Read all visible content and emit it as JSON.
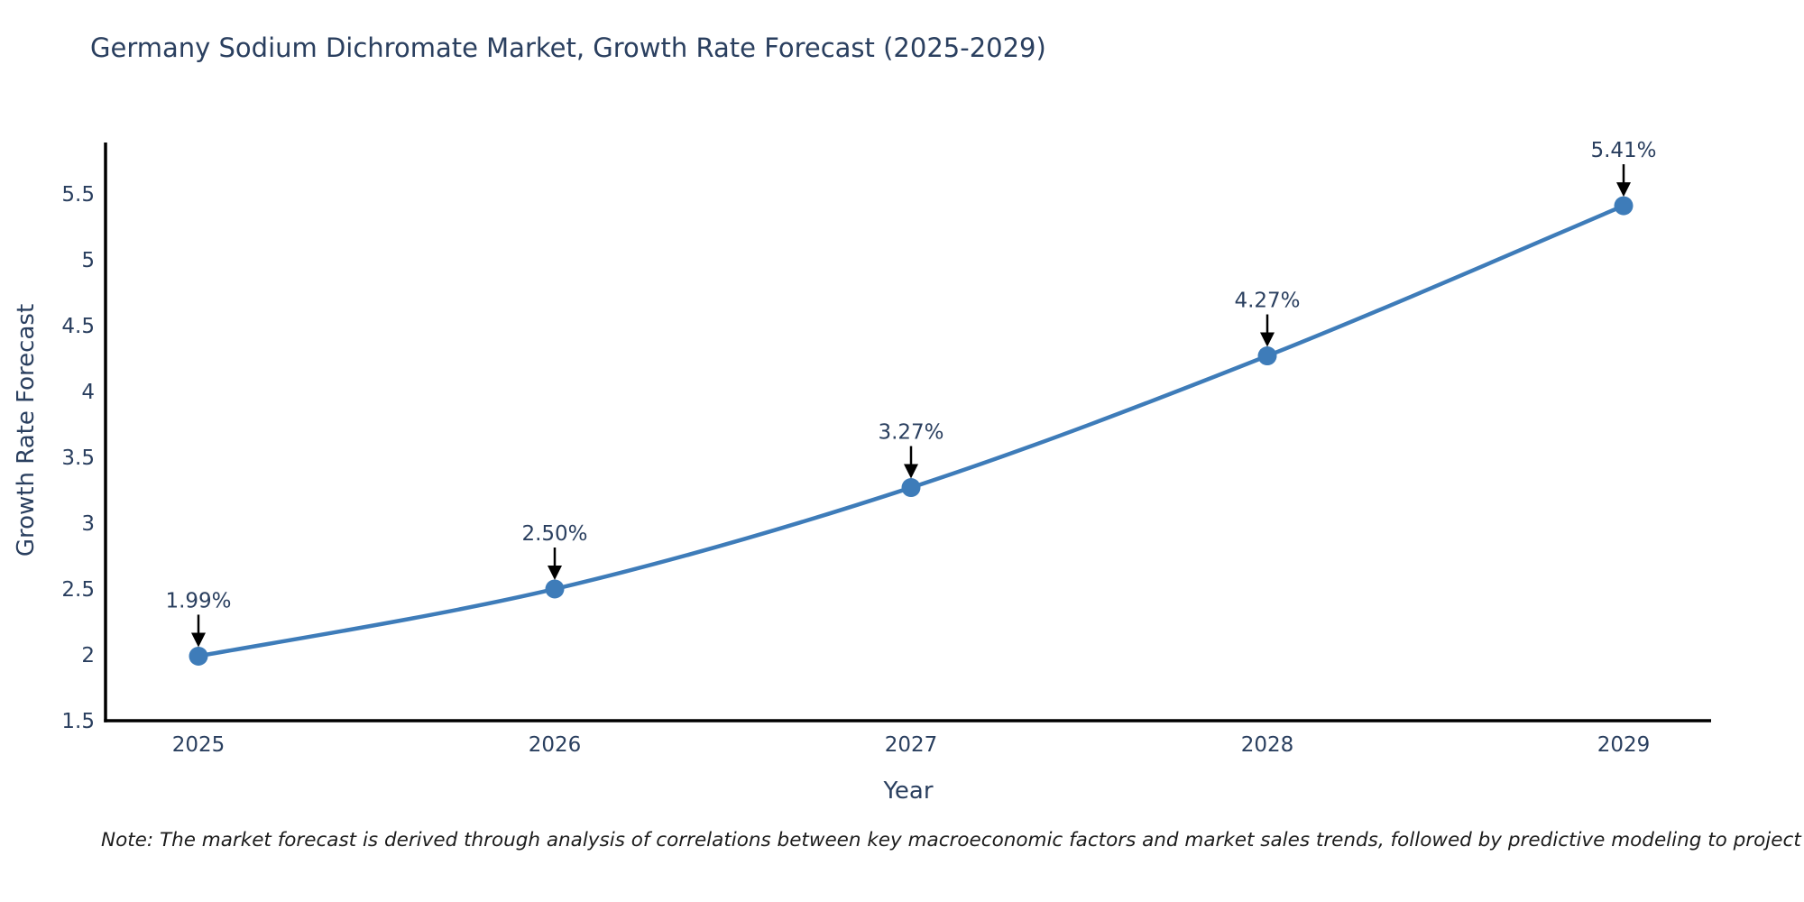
{
  "title": "Germany Sodium Dichromate Market, Growth Rate Forecast (2025-2029)",
  "note": "Note: The market forecast is derived through analysis of correlations between key macroeconomic factors and market sales trends, followed by predictive modeling to project future sales.",
  "chart_data": {
    "type": "line",
    "title": "Germany Sodium Dichromate Market, Growth Rate Forecast (2025-2029)",
    "xlabel": "Year",
    "ylabel": "Growth Rate Forecast",
    "categories": [
      "2025",
      "2026",
      "2027",
      "2028",
      "2029"
    ],
    "series": [
      {
        "name": "Growth Rate Forecast",
        "values": [
          1.99,
          2.5,
          3.27,
          4.27,
          5.41
        ]
      }
    ],
    "point_labels": [
      "1.99%",
      "2.50%",
      "3.27%",
      "4.27%",
      "5.41%"
    ],
    "ylim": [
      1.5,
      5.89
    ],
    "ytick_values": [
      1.5,
      2,
      2.5,
      3,
      3.5,
      4,
      4.5,
      5,
      5.5
    ],
    "ytick_labels": [
      "1.5",
      "2",
      "2.5",
      "3",
      "3.5",
      "4",
      "4.5",
      "5",
      "5.5"
    ],
    "grid": false,
    "legend_position": "none",
    "line_color": "#3e7cb9",
    "marker_color": "#3e7cb9",
    "axis_color": "#000000",
    "tick_color": "#2a3f5f",
    "annotation_text_color": "#2a3f5f",
    "annotation_arrow_color": "#000000"
  }
}
